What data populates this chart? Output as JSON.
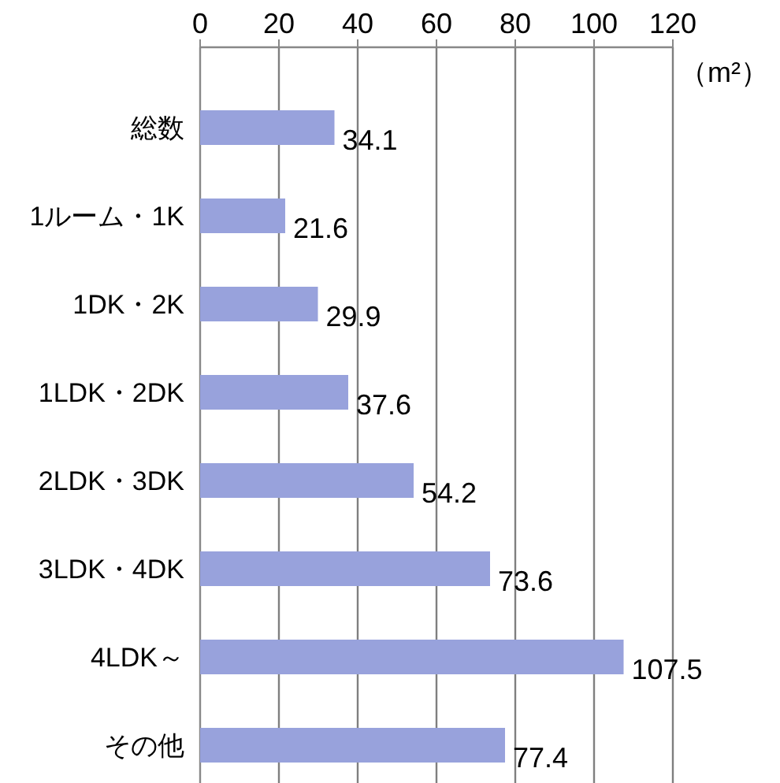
{
  "chart_data": {
    "type": "bar",
    "orientation": "horizontal",
    "xlabel": "（m²）",
    "categories": [
      "総数",
      "1ルーム・1K",
      "1DK・2K",
      "1LDK・2DK",
      "2LDK・3DK",
      "3LDK・4DK",
      "4LDK～",
      "その他"
    ],
    "values": [
      34.1,
      21.6,
      29.9,
      37.6,
      54.2,
      73.6,
      107.5,
      77.4
    ],
    "color": "#98a2dc",
    "xlim": [
      0,
      120
    ],
    "xticks": [
      0,
      20,
      40,
      60,
      80,
      100,
      120
    ],
    "grid": "x",
    "data_labels": true
  }
}
